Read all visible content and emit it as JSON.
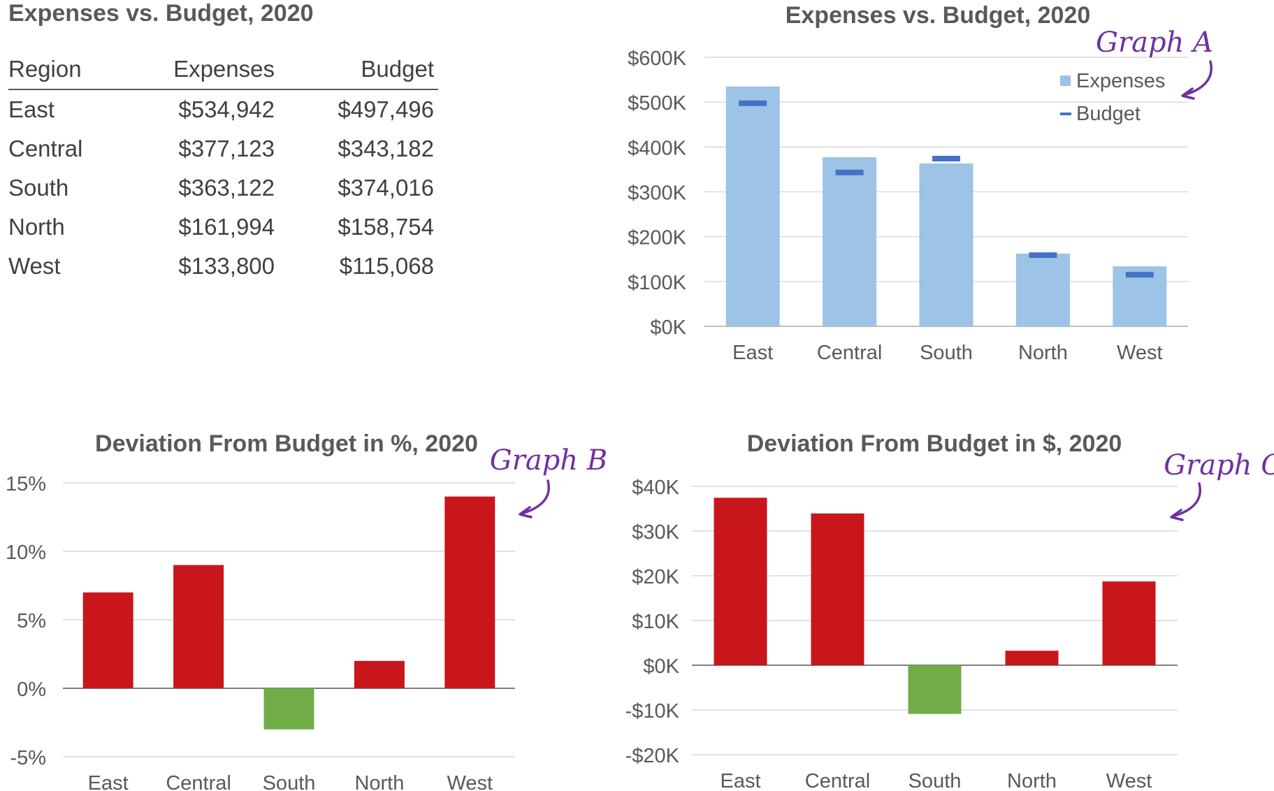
{
  "table": {
    "title": "Expenses vs. Budget, 2020",
    "headers": [
      "Region",
      "Expenses",
      "Budget"
    ],
    "rows": [
      [
        "East",
        "$534,942",
        "$497,496"
      ],
      [
        "Central",
        "$377,123",
        "$343,182"
      ],
      [
        "South",
        "$363,122",
        "$374,016"
      ],
      [
        "North",
        "$161,994",
        "$158,754"
      ],
      [
        "West",
        "$133,800",
        "$115,068"
      ]
    ]
  },
  "annotations": {
    "a": "Graph A",
    "b": "Graph B",
    "c": "Graph C"
  },
  "colors": {
    "expenses_bar": "#9DC3E6",
    "budget_marker": "#4472C4",
    "over_budget": "#C9161B",
    "under_budget": "#70AD47",
    "annotation": "#7030A0",
    "grid": "#D9D9D9",
    "axis_text": "#595959"
  },
  "chart_data": [
    {
      "id": "A",
      "type": "bar",
      "title": "Expenses vs. Budget, 2020",
      "categories": [
        "East",
        "Central",
        "South",
        "North",
        "West"
      ],
      "series": [
        {
          "name": "Expenses",
          "kind": "bar",
          "values": [
            534942,
            377123,
            363122,
            161994,
            133800
          ]
        },
        {
          "name": "Budget",
          "kind": "marker",
          "values": [
            497496,
            343182,
            374016,
            158754,
            115068
          ]
        }
      ],
      "ylim": [
        0,
        600000
      ],
      "yticks": [
        0,
        100000,
        200000,
        300000,
        400000,
        500000,
        600000
      ],
      "ytick_labels": [
        "$0K",
        "$100K",
        "$200K",
        "$300K",
        "$400K",
        "$500K",
        "$600K"
      ],
      "grid": true,
      "legend": "top-right"
    },
    {
      "id": "B",
      "type": "bar",
      "title": "Deviation From Budget in %, 2020",
      "categories": [
        "East",
        "Central",
        "South",
        "North",
        "West"
      ],
      "values": [
        7,
        9,
        -3,
        2,
        14
      ],
      "ylim": [
        -5,
        15
      ],
      "yticks": [
        -5,
        0,
        5,
        10,
        15
      ],
      "ytick_labels": [
        "-5%",
        "0%",
        "5%",
        "10%",
        "15%"
      ],
      "grid": true
    },
    {
      "id": "C",
      "type": "bar",
      "title": "Deviation From Budget in $, 2020",
      "categories": [
        "East",
        "Central",
        "South",
        "North",
        "West"
      ],
      "values": [
        37446,
        33941,
        -10894,
        3240,
        18732
      ],
      "ylim": [
        -20000,
        40000
      ],
      "yticks": [
        -20000,
        -10000,
        0,
        10000,
        20000,
        30000,
        40000
      ],
      "ytick_labels": [
        "-$20K",
        "-$10K",
        "$0K",
        "$10K",
        "$20K",
        "$30K",
        "$40K"
      ],
      "grid": true
    }
  ]
}
